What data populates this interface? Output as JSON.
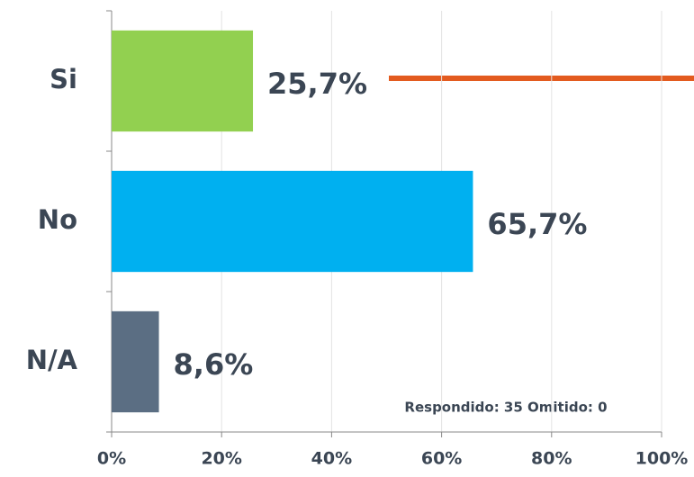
{
  "chart_data": {
    "type": "hbar",
    "categories": [
      "Si",
      "No",
      "N/A"
    ],
    "values": [
      25.7,
      65.7,
      8.6
    ],
    "value_labels": [
      "25,7%",
      "65,7%",
      "8,6%"
    ],
    "colors": [
      "#92d050",
      "#00b0f0",
      "#5b6e83"
    ],
    "xlim": [
      0,
      100
    ],
    "xticks": [
      {
        "value": 0,
        "label": "0%"
      },
      {
        "value": 20,
        "label": "20%"
      },
      {
        "value": 40,
        "label": "40%"
      },
      {
        "value": 60,
        "label": "60%"
      },
      {
        "value": 80,
        "label": "80%"
      },
      {
        "value": 100,
        "label": "100%"
      }
    ],
    "grid": true,
    "annotation": "Respondido: 35 Omitido: 0"
  }
}
